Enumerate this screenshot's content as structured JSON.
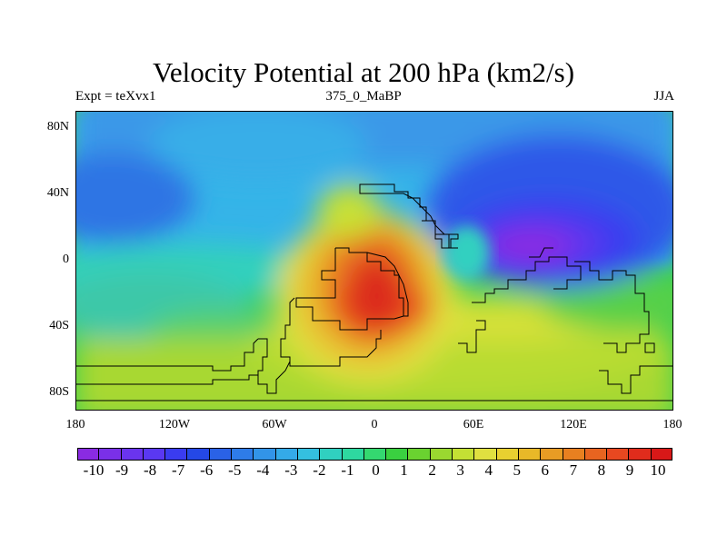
{
  "title": "Velocity Potential at 200 hPa (km2/s)",
  "subtitle_left": "Expt = teXvx1",
  "subtitle_center": "375_0_MaBP",
  "subtitle_right": "JJA",
  "map": {
    "lon_range": [
      -180,
      180
    ],
    "lat_range": [
      -90,
      90
    ],
    "lat_ticks": [
      {
        "lat": 80,
        "label": "80N"
      },
      {
        "lat": 40,
        "label": "40N"
      },
      {
        "lat": 0,
        "label": "0"
      },
      {
        "lat": -40,
        "label": "40S"
      },
      {
        "lat": -80,
        "label": "80S"
      }
    ],
    "lon_ticks": [
      {
        "lon": -180,
        "label": "180"
      },
      {
        "lon": -120,
        "label": "120W"
      },
      {
        "lon": -60,
        "label": "60W"
      },
      {
        "lon": 0,
        "label": "0"
      },
      {
        "lon": 60,
        "label": "60E"
      },
      {
        "lon": 120,
        "label": "120E"
      },
      {
        "lon": 180,
        "label": "180"
      }
    ],
    "min_center": {
      "lon": 95,
      "lat": 15,
      "value": -10
    },
    "max_center": {
      "lon": 0,
      "lat": -25,
      "value": 10
    }
  },
  "colorbar": {
    "labels": [
      "-10",
      "-9",
      "-8",
      "-7",
      "-6",
      "-5",
      "-4",
      "-3",
      "-2",
      "-1",
      "0",
      "1",
      "2",
      "3",
      "4",
      "5",
      "6",
      "7",
      "8",
      "9",
      "10"
    ],
    "colors": [
      "#8a2be2",
      "#7a30e8",
      "#6a34ee",
      "#5a38f2",
      "#3a3cf0",
      "#2448e6",
      "#2a62e6",
      "#2e7ce8",
      "#3294e8",
      "#34aae8",
      "#34c0e0",
      "#30d0c0",
      "#2ed8a0",
      "#34d870",
      "#3ad040",
      "#6ad230",
      "#9ad830",
      "#c4e034",
      "#e0e040",
      "#e8d030",
      "#e8b828",
      "#e89c24",
      "#e88020",
      "#e86420",
      "#e84820",
      "#e02c1c",
      "#d81818"
    ]
  }
}
